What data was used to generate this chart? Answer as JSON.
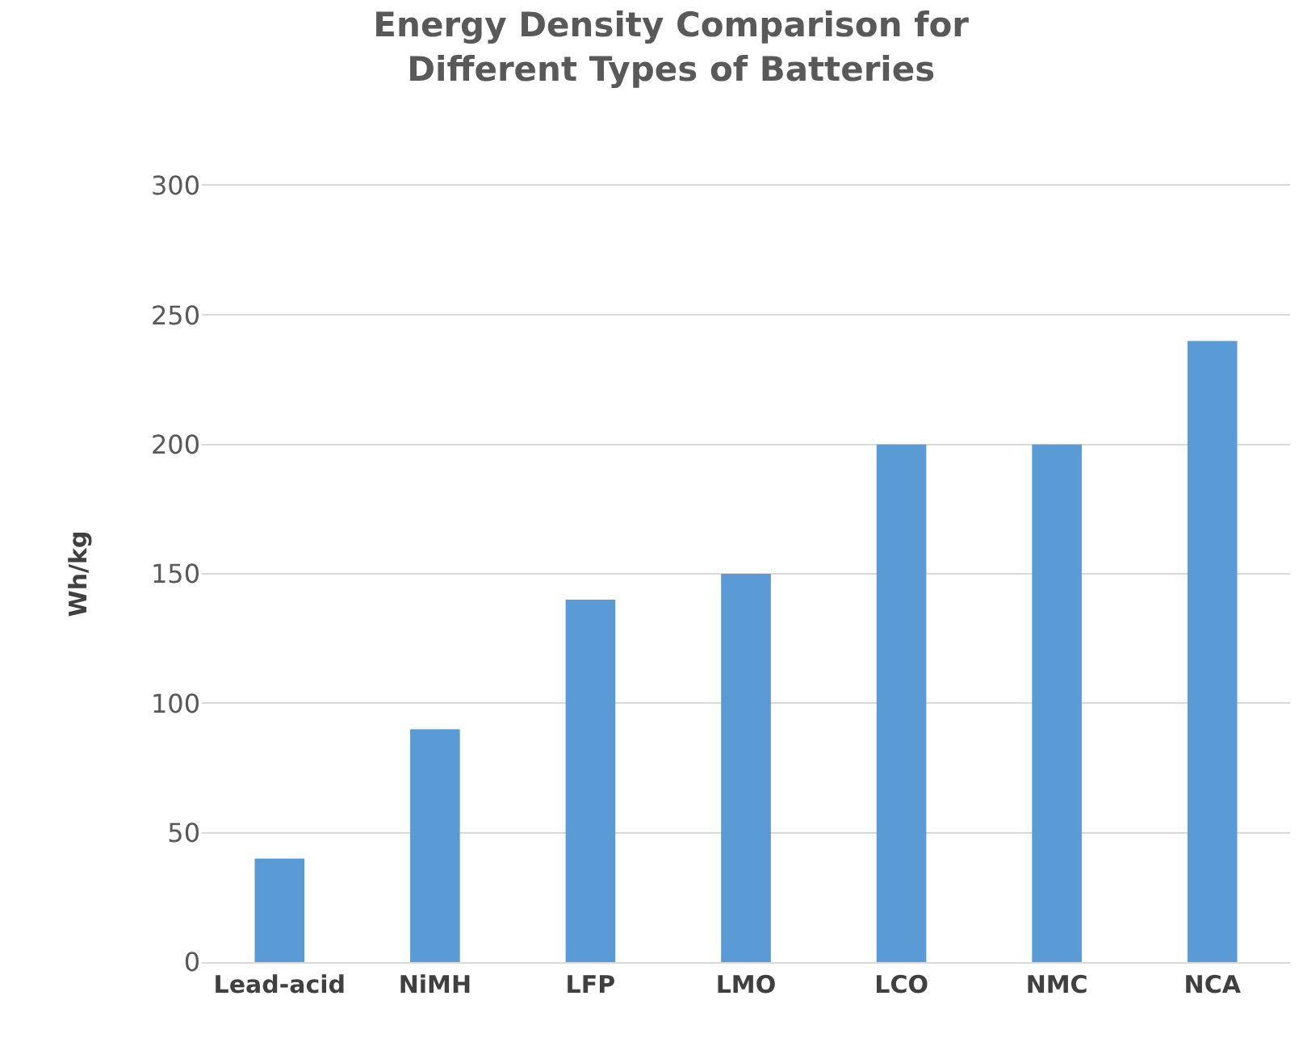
{
  "chart_data": {
    "type": "bar",
    "title": "Energy Density Comparison for\nDifferent Types of Batteries",
    "ylabel": "Wh/kg",
    "categories": [
      "Lead-acid",
      "NiMH",
      "LFP",
      "LMO",
      "LCO",
      "NMC",
      "NCA"
    ],
    "values": [
      40,
      90,
      140,
      150,
      200,
      200,
      240
    ],
    "color": "#5b9bd5",
    "ylim": [
      0,
      300
    ],
    "yticks": [
      0,
      50,
      100,
      150,
      200,
      250,
      300
    ],
    "grid": "y"
  }
}
